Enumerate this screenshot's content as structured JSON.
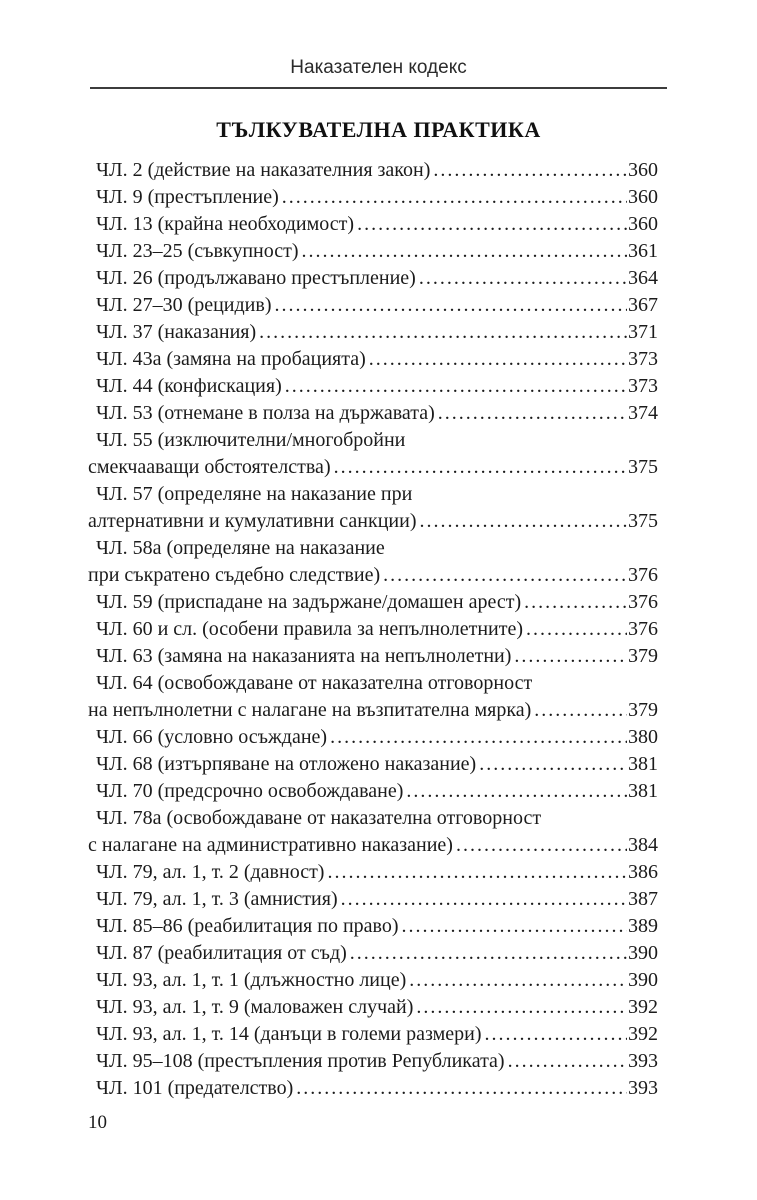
{
  "page": {
    "running_header": "Наказателен кодекс",
    "title": "ТЪЛКУВАТЕЛНА ПРАКТИКА",
    "page_number": "10"
  },
  "toc": {
    "entries": [
      {
        "lines": [
          "ЧЛ. 2 (действие на наказателния закон)"
        ],
        "page": "360"
      },
      {
        "lines": [
          "ЧЛ. 9 (престъпление)"
        ],
        "page": "360"
      },
      {
        "lines": [
          "ЧЛ. 13 (крайна необходимост)"
        ],
        "page": "360"
      },
      {
        "lines": [
          "ЧЛ. 23–25 (съвкупност)"
        ],
        "page": "361"
      },
      {
        "lines": [
          "ЧЛ. 26 (продължавано престъпление)"
        ],
        "page": "364"
      },
      {
        "lines": [
          "ЧЛ. 27–30 (рецидив)"
        ],
        "page": "367"
      },
      {
        "lines": [
          "ЧЛ. 37 (наказания)"
        ],
        "page": "371"
      },
      {
        "lines": [
          "ЧЛ. 43а (замяна на пробацията)"
        ],
        "page": "373"
      },
      {
        "lines": [
          "ЧЛ. 44 (конфискация)"
        ],
        "page": "373"
      },
      {
        "lines": [
          "ЧЛ. 53 (отнемане в полза на държавата)"
        ],
        "page": "374"
      },
      {
        "lines": [
          "ЧЛ. 55 (изключителни/многобройни",
          "смекчааващи обстоятелства)"
        ],
        "page": "375"
      },
      {
        "lines": [
          "ЧЛ. 57 (определяне на наказание при",
          "алтернативни и кумулативни санкции)"
        ],
        "page": "375"
      },
      {
        "lines": [
          "ЧЛ. 58а (определяне на наказание",
          "при съкратено съдебно следствие)"
        ],
        "page": "376"
      },
      {
        "lines": [
          "ЧЛ. 59 (приспадане на задържане/домашен арест)"
        ],
        "page": "376"
      },
      {
        "lines": [
          "ЧЛ. 60 и сл. (особени правила за непълнолетните)"
        ],
        "page": "376"
      },
      {
        "lines": [
          "ЧЛ. 63 (замяна на наказанията на непълнолетни)"
        ],
        "page": "379"
      },
      {
        "lines": [
          "ЧЛ. 64 (освобождаване от наказателна отговорност",
          "на непълнолетни с налагане на възпитателна мярка)"
        ],
        "page": "379"
      },
      {
        "lines": [
          "ЧЛ. 66 (условно осъждане)"
        ],
        "page": "380"
      },
      {
        "lines": [
          "ЧЛ. 68 (изтърпяване на отложено наказание)"
        ],
        "page": "381"
      },
      {
        "lines": [
          "ЧЛ. 70 (предсрочно освобождаване)"
        ],
        "page": "381"
      },
      {
        "lines": [
          "ЧЛ. 78а (освобождаване от наказателна отговорност",
          "с налагане на административно наказание)"
        ],
        "page": "384"
      },
      {
        "lines": [
          "ЧЛ. 79, ал. 1, т. 2 (давност)"
        ],
        "page": "386"
      },
      {
        "lines": [
          "ЧЛ. 79, ал. 1, т. 3 (амнистия)"
        ],
        "page": "387"
      },
      {
        "lines": [
          "ЧЛ. 85–86 (реабилитация по право)"
        ],
        "page": "389"
      },
      {
        "lines": [
          "ЧЛ. 87 (реабилитация от съд)"
        ],
        "page": "390"
      },
      {
        "lines": [
          "ЧЛ. 93, ал. 1, т. 1 (длъжностно лице)"
        ],
        "page": "390"
      },
      {
        "lines": [
          "ЧЛ. 93, ал. 1, т. 9 (маловажен случай)"
        ],
        "page": "392"
      },
      {
        "lines": [
          "ЧЛ. 93, ал. 1, т. 14 (данъци в големи размери)"
        ],
        "page": "392"
      },
      {
        "lines": [
          "ЧЛ. 95–108 (престъпления против Републиката)"
        ],
        "page": "393"
      },
      {
        "lines": [
          "ЧЛ. 101 (предателство)"
        ],
        "page": "393"
      }
    ]
  }
}
